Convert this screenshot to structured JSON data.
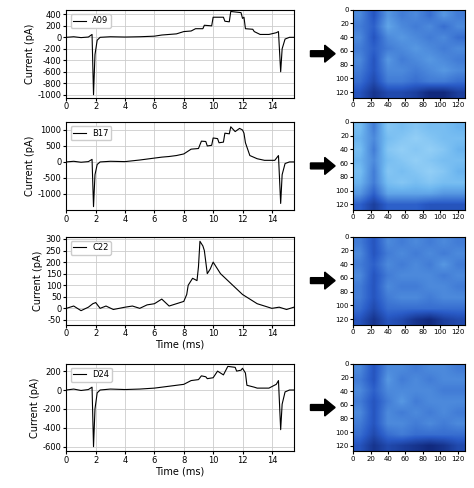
{
  "chart_data": [
    {
      "type": "line",
      "y_label": "Current (pA)",
      "xlim": [
        0,
        15.5
      ],
      "xticks": [
        0,
        2,
        4,
        6,
        8,
        10,
        12,
        14
      ],
      "ylim": [
        -1050,
        480
      ],
      "yticks": [
        -1000,
        -800,
        -600,
        -400,
        -200,
        0,
        200,
        400
      ],
      "grid": true,
      "legend": "upper left",
      "series": [
        {
          "name": "A09",
          "color": "#000000",
          "x": [
            0,
            0.5,
            1.0,
            1.5,
            1.75,
            1.85,
            1.95,
            2.1,
            2.3,
            3,
            4,
            5,
            6,
            6.5,
            7,
            7.5,
            8,
            8.5,
            8.8,
            9.3,
            9.4,
            9.9,
            10,
            10.7,
            10.8,
            11.1,
            11.2,
            11.9,
            12.0,
            12.1,
            12.2,
            12.7,
            12.8,
            13.2,
            13.8,
            14.3,
            14.45,
            14.6,
            14.7,
            14.9,
            15.2,
            15.5
          ],
          "values": [
            0,
            10,
            -5,
            5,
            50,
            -1000,
            -300,
            -50,
            0,
            10,
            5,
            10,
            20,
            40,
            50,
            60,
            100,
            110,
            150,
            150,
            210,
            200,
            350,
            350,
            280,
            270,
            450,
            430,
            330,
            350,
            150,
            140,
            100,
            50,
            50,
            80,
            100,
            -600,
            -200,
            -30,
            0,
            0
          ]
        }
      ]
    },
    {
      "type": "line",
      "y_label": "Current (pA)",
      "xlim": [
        0,
        15.5
      ],
      "xticks": [
        0,
        2,
        4,
        6,
        8,
        10,
        12,
        14
      ],
      "ylim": [
        -1500,
        1250
      ],
      "yticks": [
        -1000,
        -500,
        0,
        500,
        1000
      ],
      "grid": true,
      "legend": "upper left",
      "series": [
        {
          "name": "B17",
          "color": "#000000",
          "x": [
            0,
            0.5,
            1.0,
            1.5,
            1.75,
            1.85,
            1.95,
            2.1,
            2.3,
            3,
            4,
            5,
            6,
            6.5,
            7,
            7.5,
            8,
            8.5,
            9.0,
            9.2,
            9.5,
            9.6,
            9.9,
            10.0,
            10.3,
            10.4,
            10.7,
            10.8,
            11.1,
            11.2,
            11.5,
            11.8,
            12.0,
            12.1,
            12.2,
            12.5,
            13.0,
            13.5,
            14.2,
            14.45,
            14.6,
            14.7,
            14.9,
            15.2,
            15.5
          ],
          "values": [
            0,
            20,
            -10,
            10,
            80,
            -1400,
            -400,
            -80,
            0,
            20,
            10,
            60,
            120,
            150,
            170,
            200,
            250,
            400,
            420,
            650,
            640,
            500,
            520,
            750,
            730,
            600,
            620,
            900,
            880,
            1100,
            950,
            1050,
            1000,
            900,
            600,
            200,
            100,
            50,
            50,
            200,
            -1300,
            -400,
            -50,
            0,
            0
          ]
        }
      ]
    },
    {
      "type": "line",
      "y_label": "Current (pA)",
      "x_label": "Time (ms)",
      "xlim": [
        0,
        15.5
      ],
      "xticks": [
        0,
        2,
        4,
        6,
        8,
        10,
        12,
        14
      ],
      "ylim": [
        -70,
        310
      ],
      "yticks": [
        -50,
        0,
        50,
        100,
        150,
        200,
        250,
        300
      ],
      "grid": true,
      "legend": "upper left",
      "series": [
        {
          "name": "C22",
          "color": "#000000",
          "x": [
            0,
            0.5,
            1.0,
            1.5,
            1.8,
            2.0,
            2.3,
            2.7,
            3.2,
            4,
            4.5,
            5,
            5.5,
            6,
            6.5,
            7,
            7.5,
            8.0,
            8.2,
            8.3,
            8.6,
            8.9,
            9.0,
            9.1,
            9.3,
            9.4,
            9.6,
            9.8,
            10.0,
            10.3,
            10.5,
            11.0,
            11.5,
            12.0,
            12.5,
            13.0,
            13.5,
            14.0,
            14.5,
            15.0,
            15.5
          ],
          "values": [
            0,
            10,
            -10,
            5,
            20,
            25,
            0,
            10,
            -5,
            5,
            10,
            0,
            15,
            20,
            40,
            10,
            20,
            30,
            60,
            100,
            130,
            120,
            180,
            290,
            270,
            250,
            150,
            170,
            200,
            170,
            150,
            120,
            90,
            60,
            40,
            20,
            10,
            0,
            5,
            -5,
            5
          ]
        }
      ]
    },
    {
      "type": "line",
      "y_label": "Current (pA)",
      "x_label": "Time (ms)",
      "xlim": [
        0,
        15.5
      ],
      "xticks": [
        0,
        2,
        4,
        6,
        8,
        10,
        12,
        14
      ],
      "ylim": [
        -650,
        280
      ],
      "yticks": [
        -600,
        -400,
        -200,
        0,
        200
      ],
      "grid": true,
      "legend": "upper left",
      "series": [
        {
          "name": "D24",
          "color": "#000000",
          "x": [
            0,
            0.5,
            1.0,
            1.5,
            1.75,
            1.85,
            1.95,
            2.1,
            2.3,
            3,
            4,
            5,
            6,
            6.5,
            7,
            7.5,
            8,
            8.5,
            9.0,
            9.2,
            9.5,
            9.6,
            10.0,
            10.3,
            10.7,
            11.0,
            11.5,
            11.6,
            11.9,
            12.0,
            12.2,
            12.3,
            12.8,
            13.0,
            13.8,
            14.3,
            14.45,
            14.6,
            14.7,
            14.9,
            15.2,
            15.5
          ],
          "values": [
            0,
            10,
            -5,
            5,
            30,
            -600,
            -200,
            -30,
            0,
            10,
            5,
            10,
            20,
            30,
            40,
            50,
            60,
            100,
            110,
            150,
            140,
            120,
            130,
            200,
            160,
            250,
            240,
            200,
            210,
            230,
            180,
            50,
            30,
            20,
            20,
            60,
            100,
            -420,
            -150,
            -20,
            0,
            0
          ]
        }
      ]
    },
    {
      "type": "heatmap",
      "xlim": [
        0,
        128
      ],
      "ylim": [
        128,
        0
      ],
      "xticks": [
        0,
        20,
        40,
        60,
        80,
        100,
        120
      ],
      "yticks": [
        0,
        20,
        40,
        60,
        80,
        100,
        120
      ],
      "cells": [
        [
          0.5,
          0.3,
          0.55,
          0.45,
          0.5,
          0.4,
          0.55,
          0.45
        ],
        [
          0.45,
          0.35,
          0.6,
          0.5,
          0.45,
          0.5,
          0.4,
          0.5
        ],
        [
          0.5,
          0.3,
          0.5,
          0.55,
          0.5,
          0.45,
          0.5,
          0.4
        ],
        [
          0.45,
          0.35,
          0.45,
          0.5,
          0.55,
          0.5,
          0.45,
          0.5
        ],
        [
          0.5,
          0.3,
          0.55,
          0.45,
          0.5,
          0.55,
          0.5,
          0.45
        ],
        [
          0.45,
          0.3,
          0.5,
          0.5,
          0.45,
          0.5,
          0.55,
          0.5
        ],
        [
          0.4,
          0.25,
          0.45,
          0.45,
          0.4,
          0.45,
          0.45,
          0.4
        ],
        [
          0.3,
          0.15,
          0.25,
          0.25,
          0.2,
          0.1,
          0.1,
          0.2
        ]
      ]
    },
    {
      "type": "heatmap",
      "xlim": [
        0,
        128
      ],
      "ylim": [
        128,
        0
      ],
      "xticks": [
        0,
        20,
        40,
        60,
        80,
        100,
        120
      ],
      "yticks": [
        0,
        20,
        40,
        60,
        80,
        100,
        120
      ],
      "cells": [
        [
          0.7,
          0.45,
          0.75,
          0.7,
          0.75,
          0.7,
          0.7,
          0.65
        ],
        [
          0.65,
          0.5,
          0.7,
          0.75,
          0.8,
          0.75,
          0.7,
          0.7
        ],
        [
          0.7,
          0.45,
          0.75,
          0.8,
          0.75,
          0.8,
          0.75,
          0.65
        ],
        [
          0.65,
          0.5,
          0.7,
          0.75,
          0.8,
          0.75,
          0.7,
          0.7
        ],
        [
          0.7,
          0.45,
          0.75,
          0.7,
          0.75,
          0.8,
          0.75,
          0.65
        ],
        [
          0.65,
          0.45,
          0.7,
          0.75,
          0.7,
          0.75,
          0.7,
          0.7
        ],
        [
          0.55,
          0.35,
          0.6,
          0.6,
          0.6,
          0.6,
          0.55,
          0.55
        ],
        [
          0.35,
          0.2,
          0.35,
          0.35,
          0.35,
          0.3,
          0.3,
          0.3
        ]
      ]
    },
    {
      "type": "heatmap",
      "xlim": [
        0,
        128
      ],
      "ylim": [
        128,
        0
      ],
      "xticks": [
        0,
        20,
        40,
        60,
        80,
        100,
        120
      ],
      "yticks": [
        0,
        20,
        40,
        60,
        80,
        100,
        120
      ],
      "cells": [
        [
          0.45,
          0.3,
          0.5,
          0.45,
          0.5,
          0.45,
          0.5,
          0.45
        ],
        [
          0.5,
          0.3,
          0.45,
          0.5,
          0.45,
          0.5,
          0.45,
          0.5
        ],
        [
          0.45,
          0.35,
          0.5,
          0.45,
          0.5,
          0.45,
          0.55,
          0.45
        ],
        [
          0.5,
          0.3,
          0.45,
          0.5,
          0.5,
          0.5,
          0.45,
          0.5
        ],
        [
          0.45,
          0.3,
          0.5,
          0.45,
          0.45,
          0.5,
          0.5,
          0.45
        ],
        [
          0.45,
          0.3,
          0.45,
          0.5,
          0.5,
          0.45,
          0.5,
          0.5
        ],
        [
          0.4,
          0.25,
          0.4,
          0.4,
          0.4,
          0.4,
          0.4,
          0.4
        ],
        [
          0.3,
          0.15,
          0.3,
          0.25,
          0.15,
          0.1,
          0.2,
          0.25
        ]
      ]
    },
    {
      "type": "heatmap",
      "xlim": [
        0,
        128
      ],
      "ylim": [
        128,
        0
      ],
      "xticks": [
        0,
        20,
        40,
        60,
        80,
        100,
        120
      ],
      "yticks": [
        0,
        20,
        40,
        60,
        80,
        100,
        120
      ],
      "cells": [
        [
          0.5,
          0.3,
          0.5,
          0.5,
          0.45,
          0.5,
          0.5,
          0.45
        ],
        [
          0.45,
          0.3,
          0.55,
          0.45,
          0.5,
          0.45,
          0.5,
          0.5
        ],
        [
          0.5,
          0.35,
          0.5,
          0.5,
          0.5,
          0.5,
          0.45,
          0.45
        ],
        [
          0.45,
          0.3,
          0.45,
          0.55,
          0.45,
          0.5,
          0.5,
          0.5
        ],
        [
          0.5,
          0.3,
          0.5,
          0.45,
          0.5,
          0.45,
          0.5,
          0.45
        ],
        [
          0.45,
          0.3,
          0.5,
          0.5,
          0.45,
          0.5,
          0.45,
          0.5
        ],
        [
          0.4,
          0.25,
          0.4,
          0.45,
          0.4,
          0.4,
          0.4,
          0.4
        ],
        [
          0.3,
          0.15,
          0.25,
          0.2,
          0.15,
          0.1,
          0.15,
          0.25
        ]
      ]
    }
  ]
}
